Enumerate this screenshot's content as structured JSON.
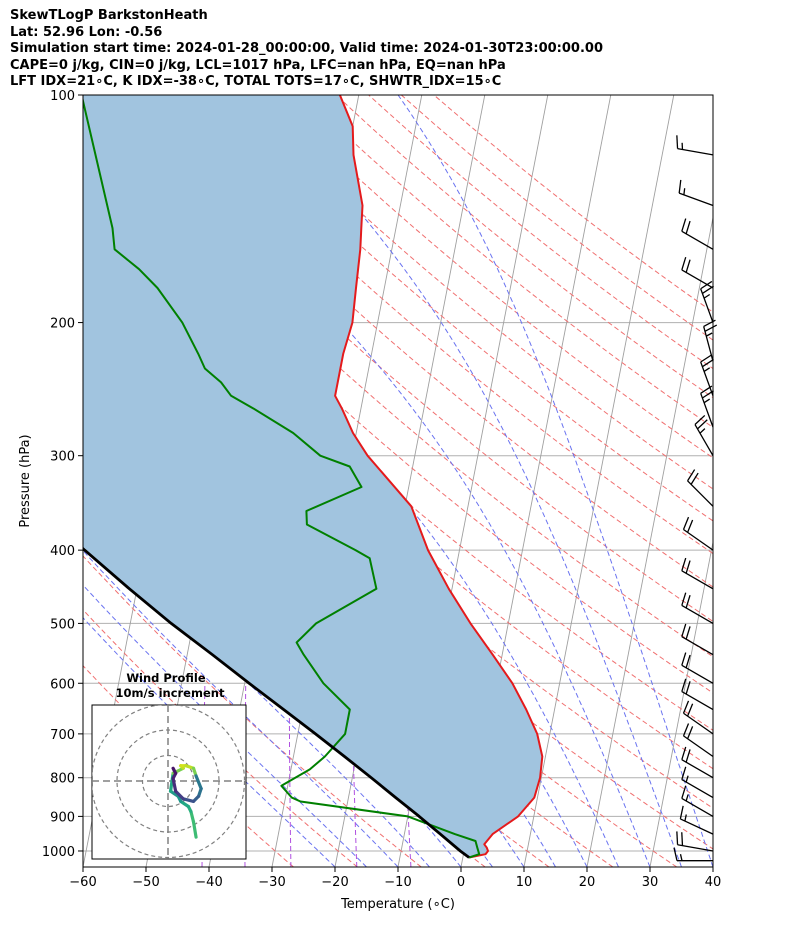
{
  "header": {
    "line1": "SkewTLogP BarkstonHeath",
    "line2": "Lat: 52.96   Lon: -0.56",
    "line3": "Simulation start time: 2024-01-28_00:00:00, Valid time: 2024-01-30T23:00:00.00",
    "line4": "CAPE=0 j/kg, CIN=0 j/kg, LCL=1017 hPa, LFC=nan hPa, EQ=nan hPa",
    "line5": "LFT IDX=21∘C, K IDX=-38∘C, TOTAL TOTS=17∘C, SHWTR_IDX=15∘C"
  },
  "chart_data": {
    "type": "skewt",
    "xlabel": "Temperature (∘C)",
    "ylabel": "Pressure (hPa)",
    "xlim": [
      -60,
      40
    ],
    "ylim": [
      1050,
      100
    ],
    "log_y": true,
    "grid": true,
    "x_ticks": [
      -60,
      -50,
      -40,
      -30,
      -20,
      -10,
      0,
      10,
      20,
      30,
      40
    ],
    "y_ticks": [
      1000,
      900,
      800,
      700,
      600,
      500,
      400,
      300,
      200,
      100
    ],
    "temperature": {
      "color": "#e41a1c",
      "pressure": [
        1020,
        1010,
        1000,
        990,
        980,
        950,
        900,
        850,
        800,
        750,
        700,
        650,
        600,
        550,
        500,
        450,
        400,
        350,
        300,
        280,
        260,
        250,
        240,
        230,
        220,
        200,
        180,
        160,
        150,
        140,
        120,
        110,
        100
      ],
      "values": [
        1,
        3.5,
        3.8,
        3.5,
        3.0,
        4.0,
        7.5,
        9.5,
        9.8,
        9.5,
        8.0,
        5.5,
        2.5,
        -1.5,
        -6.0,
        -10.5,
        -15.0,
        -19.0,
        -27.5,
        -30.5,
        -33.0,
        -34.5,
        -34.5,
        -34.5,
        -34.5,
        -34.0,
        -34.5,
        -35.0,
        -35.5,
        -36.0,
        -39.0,
        -40.0,
        -43.0
      ]
    },
    "dewpoint": {
      "color": "#008000",
      "pressure": [
        1020,
        1010,
        990,
        970,
        950,
        900,
        860,
        850,
        820,
        780,
        750,
        700,
        650,
        600,
        550,
        530,
        500,
        450,
        410,
        400,
        370,
        355,
        330,
        310,
        300,
        280,
        260,
        250,
        240,
        230,
        220,
        200,
        180,
        170,
        160,
        150,
        100
      ],
      "values": [
        1,
        2.5,
        2.0,
        1.5,
        -2.0,
        -10.0,
        -27.5,
        -29.0,
        -31.0,
        -27.0,
        -25.0,
        -22.5,
        -22.5,
        -27.5,
        -31.5,
        -33.0,
        -30.5,
        -22.0,
        -24.0,
        -26.5,
        -35.0,
        -35.5,
        -27.5,
        -30.0,
        -35.0,
        -40.0,
        -47.0,
        -51.0,
        -53.0,
        -56.0,
        -57.5,
        -61.0,
        -66.0,
        -69.5,
        -74.0,
        -75.0,
        -84.0
      ]
    },
    "parcel": {
      "color": "#000000",
      "pressure": [
        1020,
        1000,
        950,
        900,
        850,
        800,
        750,
        700,
        650,
        600,
        550,
        500,
        450,
        400,
        350,
        300,
        250,
        200,
        150,
        100
      ],
      "values": [
        1.0,
        -0.6,
        -4.3,
        -8.2,
        -12.5,
        -17.0,
        -21.9,
        -27.2,
        -33.0,
        -39.3,
        -46.0,
        -53.5,
        -61.2,
        -69.5,
        -78.5,
        -88.0,
        -98.5,
        -110.0,
        -122.0,
        -136.0
      ]
    },
    "shading": {
      "between": [
        "parcel",
        "temperature"
      ],
      "color": "#a1c4df"
    },
    "reference_lines": {
      "isotherms": {
        "color": "#a0a0a0"
      },
      "dry_adiabats": {
        "color": "#f07070",
        "style": "dashed"
      },
      "moist_adiabats": {
        "color": "#6a73f0",
        "style": "dashed"
      },
      "mixing_ratio": {
        "color": "#b050e0",
        "style": "dashed"
      }
    },
    "wind_barbs": {
      "color": "#000000",
      "pressure": [
        1030,
        1000,
        950,
        900,
        850,
        800,
        750,
        700,
        650,
        600,
        550,
        500,
        450,
        400,
        350,
        300,
        275,
        250,
        225,
        200,
        180,
        160,
        140,
        120
      ],
      "speed_kt": [
        15,
        20,
        15,
        15,
        15,
        20,
        20,
        20,
        20,
        20,
        20,
        20,
        20,
        20,
        20,
        25,
        25,
        25,
        25,
        25,
        20,
        20,
        15,
        15
      ],
      "direction_deg": [
        270,
        280,
        295,
        300,
        300,
        300,
        305,
        305,
        300,
        300,
        300,
        300,
        300,
        305,
        315,
        330,
        340,
        340,
        345,
        340,
        300,
        300,
        290,
        280
      ]
    },
    "inset": {
      "title": "Wind Profile",
      "subtitle": "10m/s increment",
      "hodograph": {
        "u": [
          5.5,
          5.0,
          4.5,
          4.0,
          2.5,
          2.0,
          0.5,
          1.0,
          3.0,
          2.5,
          3.5,
          5.0,
          5.5,
          6.5,
          6.0,
          5.0,
          3.0,
          1.5,
          1.0,
          1.5,
          1.0
        ],
        "v": [
          -11.0,
          -8.0,
          -6.0,
          -5.0,
          -4.0,
          -3.0,
          -2.0,
          1.5,
          2.5,
          3.0,
          3.0,
          2.5,
          1.0,
          -1.5,
          -3.0,
          -4.0,
          -3.5,
          -2.0,
          0.5,
          1.5,
          2.5
        ],
        "colors": [
          "#3dbc74",
          "#3dbc74",
          "#2ab07f",
          "#22a884",
          "#1f968b",
          "#22978a",
          "#22a884",
          "#7ad151",
          "#bddf26",
          "#d2e21b",
          "#bddf26",
          "#7ad151",
          "#2a788e",
          "#2c728e",
          "#355f8d",
          "#3b528b",
          "#433e85",
          "#472d7b",
          "#482173",
          "#481668",
          "#440154"
        ]
      }
    }
  }
}
